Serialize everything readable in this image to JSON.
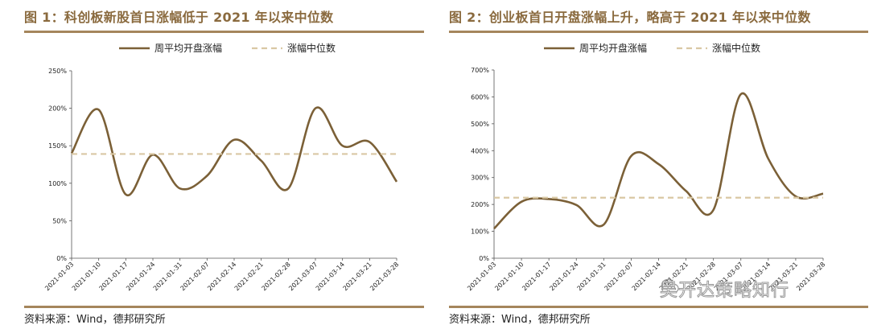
{
  "figures": [
    {
      "title": "图 1：科创板新股首日涨幅低于 2021 年以来中位数",
      "source": "资料来源：Wind，德邦研究所"
    },
    {
      "title": "图 2：创业板首日开盘涨幅上升，略高于 2021 年以来中位数",
      "source": "资料来源：Wind，德邦研究所"
    }
  ],
  "watermark": "吴开达策略知行",
  "colors": {
    "series": "#7b6037",
    "median": "#d9c8a4",
    "rule": "#a5865c",
    "title": "#8a6a3e",
    "axis": "#666666"
  },
  "chart_data": [
    {
      "type": "line",
      "title": "图 1：科创板新股首日涨幅低于 2021 年以来中位数",
      "categories": [
        "2021-01-03",
        "2021-01-10",
        "2021-01-17",
        "2021-01-24",
        "2021-01-31",
        "2021-02-07",
        "2021-02-14",
        "2021-02-21",
        "2021-02-28",
        "2021-03-07",
        "2021-03-14",
        "2021-03-21",
        "2021-03-28"
      ],
      "series": [
        {
          "name": "周平均开盘涨幅",
          "values": [
            140,
            198,
            85,
            138,
            93,
            110,
            158,
            130,
            93,
            200,
            150,
            155,
            102
          ]
        },
        {
          "name": "涨幅中位数",
          "values": [
            139,
            139,
            139,
            139,
            139,
            139,
            139,
            139,
            139,
            139,
            139,
            139,
            139
          ],
          "style": "dashed"
        }
      ],
      "y_ticks": [
        "0%",
        "50%",
        "100%",
        "150%",
        "200%",
        "250%"
      ],
      "ylim": [
        0,
        250
      ],
      "legend": "top-center"
    },
    {
      "type": "line",
      "title": "图 2：创业板首日开盘涨幅上升，略高于 2021 年以来中位数",
      "categories": [
        "2021-01-03",
        "2021-01-10",
        "2021-01-17",
        "2021-01-24",
        "2021-01-31",
        "2021-02-07",
        "2021-02-14",
        "2021-02-21",
        "2021-02-28",
        "2021-03-07",
        "2021-03-14",
        "2021-03-21",
        "2021-03-28"
      ],
      "series": [
        {
          "name": "周平均开盘涨幅",
          "values": [
            110,
            210,
            220,
            198,
            125,
            380,
            350,
            250,
            180,
            610,
            370,
            230,
            240
          ]
        },
        {
          "name": "涨幅中位数",
          "values": [
            225,
            225,
            225,
            225,
            225,
            225,
            225,
            225,
            225,
            225,
            225,
            225,
            225
          ],
          "style": "dashed"
        }
      ],
      "y_ticks": [
        "0%",
        "100%",
        "200%",
        "300%",
        "400%",
        "500%",
        "600%",
        "700%"
      ],
      "ylim": [
        0,
        700
      ],
      "legend": "top-center"
    }
  ]
}
